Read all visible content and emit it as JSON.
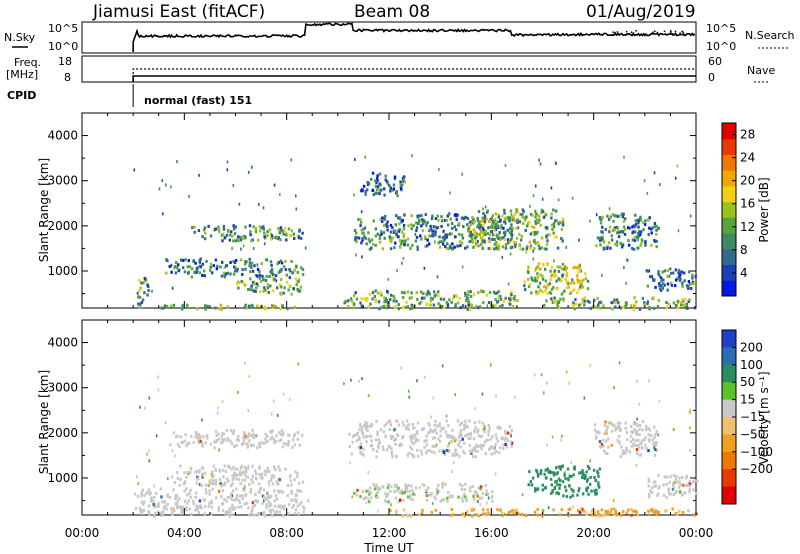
{
  "header": {
    "station": "Jiamusi East (fitACF)",
    "beam": "Beam 08",
    "date": "01/Aug/2019"
  },
  "param_panels": {
    "nsky_label": "N.Sky",
    "nsearch_label": "N.Search",
    "nsky_ticks": [
      "10^5",
      "10^0"
    ],
    "nsearch_ticks": [
      "10^5",
      "10^0"
    ],
    "freq_label": "Freq.",
    "freq_unit": "[MHz]",
    "freq_ticks": [
      "18",
      "8"
    ],
    "nave_label": "Nave",
    "nave_ticks": [
      "60",
      "0"
    ],
    "cpid_label": "CPID",
    "cpid_mode": "normal (fast) 151"
  },
  "chart_data": [
    {
      "type": "heatmap",
      "name": "power",
      "ylabel": "Slant Range [km]",
      "xlabel": "",
      "ylim": [
        180,
        4500
      ],
      "xlim_hours": [
        0,
        24
      ],
      "yticks": [
        1000,
        2000,
        3000,
        4000
      ],
      "xtick_labels": [
        "00:00",
        "04:00",
        "08:00",
        "12:00",
        "16:00",
        "20:00",
        "00:00"
      ],
      "colorbar": {
        "label": "Power [dB]",
        "ticks": [
          4,
          8,
          12,
          16,
          20,
          24,
          28
        ],
        "range": [
          0,
          30
        ],
        "colors": [
          "#0018e6",
          "#1c3fb8",
          "#2e6b8c",
          "#3a8a62",
          "#5aa33c",
          "#9ac21e",
          "#f0d010",
          "#f0a800",
          "#f07800",
          "#e83a00",
          "#e00000"
        ]
      },
      "echo_regions": [
        {
          "t": [
            2.0,
            8.8
          ],
          "r": [
            180,
            280
          ],
          "v": 14
        },
        {
          "t": [
            2.0,
            2.6
          ],
          "r": [
            300,
            900
          ],
          "v": 10
        },
        {
          "t": [
            3.2,
            8.6
          ],
          "r": [
            900,
            1300
          ],
          "v": 8
        },
        {
          "t": [
            6.0,
            8.6
          ],
          "r": [
            500,
            900
          ],
          "v": 12
        },
        {
          "t": [
            4.2,
            8.6
          ],
          "r": [
            1700,
            2050
          ],
          "v": 10
        },
        {
          "t": [
            10.2,
            17.0
          ],
          "r": [
            180,
            600
          ],
          "v": 12
        },
        {
          "t": [
            10.6,
            16.8
          ],
          "r": [
            1500,
            2300
          ],
          "v": 9
        },
        {
          "t": [
            15.0,
            18.8
          ],
          "r": [
            1500,
            2400
          ],
          "v": 13
        },
        {
          "t": [
            17.2,
            19.8
          ],
          "r": [
            500,
            1200
          ],
          "v": 15
        },
        {
          "t": [
            18.0,
            24.0
          ],
          "r": [
            180,
            450
          ],
          "v": 12
        },
        {
          "t": [
            20.0,
            22.5
          ],
          "r": [
            1500,
            2300
          ],
          "v": 9
        },
        {
          "t": [
            22.0,
            24.0
          ],
          "r": [
            600,
            1100
          ],
          "v": 8
        },
        {
          "t": [
            10.8,
            12.6
          ],
          "r": [
            2700,
            3200
          ],
          "v": 7
        }
      ]
    },
    {
      "type": "heatmap",
      "name": "velocity",
      "ylabel": "Slant Range [km]",
      "xlabel": "Time UT",
      "ylim": [
        180,
        4500
      ],
      "xlim_hours": [
        0,
        24
      ],
      "yticks": [
        1000,
        2000,
        3000,
        4000
      ],
      "xtick_labels": [
        "00:00",
        "04:00",
        "08:00",
        "12:00",
        "16:00",
        "20:00",
        "00:00"
      ],
      "colorbar": {
        "label": "Velocity [m s⁻¹]",
        "ticks": [
          "200",
          "100",
          "50",
          "15",
          "−15",
          "−50",
          "−100",
          "−200"
        ],
        "colors": [
          "#1f3fc8",
          "#2a70b0",
          "#2a8f60",
          "#5cc22a",
          "#c8c8c8",
          "#f0c070",
          "#f0a020",
          "#f07800",
          "#e83a00",
          "#e00000"
        ]
      },
      "echo_regions": [
        {
          "t": [
            2.0,
            8.8
          ],
          "r": [
            180,
            800
          ],
          "v": 0
        },
        {
          "t": [
            3.4,
            8.6
          ],
          "r": [
            1700,
            2100
          ],
          "v": 0
        },
        {
          "t": [
            3.4,
            8.6
          ],
          "r": [
            850,
            1300
          ],
          "v": 0
        },
        {
          "t": [
            10.4,
            16.8
          ],
          "r": [
            1500,
            2300
          ],
          "v": 0
        },
        {
          "t": [
            10.6,
            16.0
          ],
          "r": [
            500,
            900
          ],
          "v": 5
        },
        {
          "t": [
            17.4,
            20.2
          ],
          "r": [
            600,
            1300
          ],
          "v": 60
        },
        {
          "t": [
            12.0,
            24.0
          ],
          "r": [
            180,
            350
          ],
          "v": -40
        },
        {
          "t": [
            20.0,
            22.5
          ],
          "r": [
            1500,
            2300
          ],
          "v": 0
        },
        {
          "t": [
            22.0,
            24.0
          ],
          "r": [
            600,
            1100
          ],
          "v": 0
        }
      ]
    }
  ]
}
